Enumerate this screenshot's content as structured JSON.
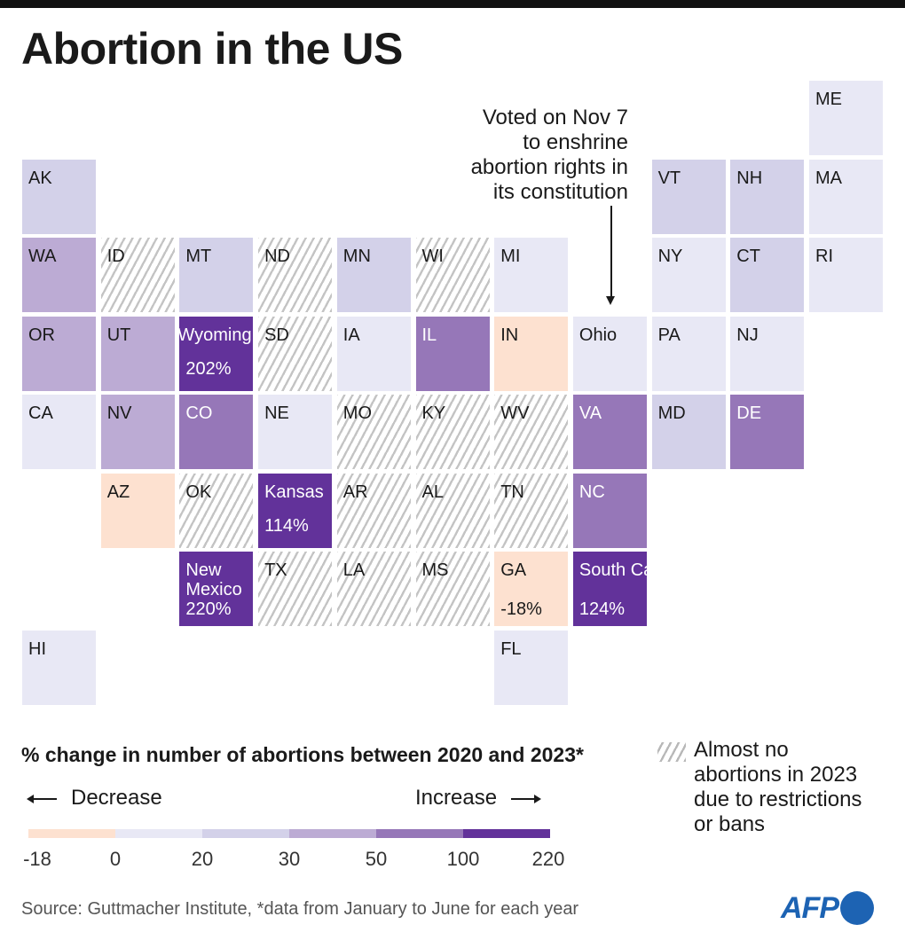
{
  "title": "Abortion in the US",
  "colors": {
    "neg": "#fde1d0",
    "c0_20": "#e8e8f5",
    "c20_30": "#d3d1e9",
    "c30_50": "#bcabd4",
    "c50_100": "#9677b8",
    "c100_plus": "#62329a",
    "hatch": "#c4c4c4",
    "logo": "#1d63b3"
  },
  "annotation": "Voted on Nov 7\nto enshrine\nabortion rights in\nits constitution",
  "states": [
    {
      "code": "ME",
      "label": "ME",
      "row": 0,
      "col": 10,
      "class": "c0_20"
    },
    {
      "code": "AK",
      "label": "AK",
      "row": 1,
      "col": 0,
      "class": "c20_30"
    },
    {
      "code": "VT",
      "label": "VT",
      "row": 1,
      "col": 8,
      "class": "c20_30"
    },
    {
      "code": "NH",
      "label": "NH",
      "row": 1,
      "col": 9,
      "class": "c20_30"
    },
    {
      "code": "MA",
      "label": "MA",
      "row": 1,
      "col": 10,
      "class": "c0_20"
    },
    {
      "code": "WA",
      "label": "WA",
      "row": 2,
      "col": 0,
      "class": "c30_50"
    },
    {
      "code": "ID",
      "label": "ID",
      "row": 2,
      "col": 1,
      "class": "hatch"
    },
    {
      "code": "MT",
      "label": "MT",
      "row": 2,
      "col": 2,
      "class": "c20_30"
    },
    {
      "code": "ND",
      "label": "ND",
      "row": 2,
      "col": 3,
      "class": "hatch"
    },
    {
      "code": "MN",
      "label": "MN",
      "row": 2,
      "col": 4,
      "class": "c20_30"
    },
    {
      "code": "WI",
      "label": "WI",
      "row": 2,
      "col": 5,
      "class": "hatch"
    },
    {
      "code": "MI",
      "label": "MI",
      "row": 2,
      "col": 6,
      "class": "c0_20"
    },
    {
      "code": "NY",
      "label": "NY",
      "row": 2,
      "col": 8,
      "class": "c0_20"
    },
    {
      "code": "CT",
      "label": "CT",
      "row": 2,
      "col": 9,
      "class": "c20_30"
    },
    {
      "code": "RI",
      "label": "RI",
      "row": 2,
      "col": 10,
      "class": "c0_20"
    },
    {
      "code": "OR",
      "label": "OR",
      "row": 3,
      "col": 0,
      "class": "c30_50"
    },
    {
      "code": "UT",
      "label": "UT",
      "row": 3,
      "col": 1,
      "class": "c30_50"
    },
    {
      "code": "WY",
      "label": "Wyoming",
      "value": "202%",
      "row": 3,
      "col": 2,
      "class": "c100_plus",
      "overflow": true
    },
    {
      "code": "SD",
      "label": "SD",
      "row": 3,
      "col": 3,
      "class": "hatch"
    },
    {
      "code": "IA",
      "label": "IA",
      "row": 3,
      "col": 4,
      "class": "c0_20"
    },
    {
      "code": "IL",
      "label": "IL",
      "row": 3,
      "col": 5,
      "class": "c50_100"
    },
    {
      "code": "IN",
      "label": "IN",
      "row": 3,
      "col": 6,
      "class": "neg"
    },
    {
      "code": "OH",
      "label": "Ohio",
      "row": 3,
      "col": 7,
      "class": "c0_20"
    },
    {
      "code": "PA",
      "label": "PA",
      "row": 3,
      "col": 8,
      "class": "c0_20"
    },
    {
      "code": "NJ",
      "label": "NJ",
      "row": 3,
      "col": 9,
      "class": "c0_20"
    },
    {
      "code": "CA",
      "label": "CA",
      "row": 4,
      "col": 0,
      "class": "c0_20"
    },
    {
      "code": "NV",
      "label": "NV",
      "row": 4,
      "col": 1,
      "class": "c30_50"
    },
    {
      "code": "CO",
      "label": "CO",
      "row": 4,
      "col": 2,
      "class": "c50_100"
    },
    {
      "code": "NE",
      "label": "NE",
      "row": 4,
      "col": 3,
      "class": "c0_20"
    },
    {
      "code": "MO",
      "label": "MO",
      "row": 4,
      "col": 4,
      "class": "hatch"
    },
    {
      "code": "KY",
      "label": "KY",
      "row": 4,
      "col": 5,
      "class": "hatch"
    },
    {
      "code": "WV",
      "label": "WV",
      "row": 4,
      "col": 6,
      "class": "hatch"
    },
    {
      "code": "VA",
      "label": "VA",
      "row": 4,
      "col": 7,
      "class": "c50_100"
    },
    {
      "code": "MD",
      "label": "MD",
      "row": 4,
      "col": 8,
      "class": "c20_30"
    },
    {
      "code": "DE",
      "label": "DE",
      "row": 4,
      "col": 9,
      "class": "c50_100"
    },
    {
      "code": "AZ",
      "label": "AZ",
      "row": 5,
      "col": 1,
      "class": "neg"
    },
    {
      "code": "OK",
      "label": "OK",
      "row": 5,
      "col": 2,
      "class": "hatch"
    },
    {
      "code": "KS",
      "label": "Kansas",
      "value": "114%",
      "row": 5,
      "col": 3,
      "class": "c100_plus"
    },
    {
      "code": "AR",
      "label": "AR",
      "row": 5,
      "col": 4,
      "class": "hatch"
    },
    {
      "code": "AL",
      "label": "AL",
      "row": 5,
      "col": 5,
      "class": "hatch"
    },
    {
      "code": "TN",
      "label": "TN",
      "row": 5,
      "col": 6,
      "class": "hatch"
    },
    {
      "code": "NC",
      "label": "NC",
      "row": 5,
      "col": 7,
      "class": "c50_100"
    },
    {
      "code": "NM",
      "label": "New\nMexico",
      "value": "220%",
      "row": 6,
      "col": 2,
      "class": "c100_plus",
      "two": true
    },
    {
      "code": "TX",
      "label": "TX",
      "row": 6,
      "col": 3,
      "class": "hatch"
    },
    {
      "code": "LA",
      "label": "LA",
      "row": 6,
      "col": 4,
      "class": "hatch"
    },
    {
      "code": "MS",
      "label": "MS",
      "row": 6,
      "col": 5,
      "class": "hatch"
    },
    {
      "code": "GA",
      "label": "GA",
      "value": "-18%",
      "row": 6,
      "col": 6,
      "class": "neg",
      "two": true
    },
    {
      "code": "SC",
      "label": "South\nCarolina",
      "value": "124%",
      "row": 6,
      "col": 7,
      "class": "c100_plus",
      "two": true,
      "overflow": true
    },
    {
      "code": "HI",
      "label": "HI",
      "row": 7,
      "col": 0,
      "class": "c0_20"
    },
    {
      "code": "FL",
      "label": "FL",
      "row": 7,
      "col": 6,
      "class": "c0_20"
    }
  ],
  "legend": {
    "title": "% change in number of abortions between 2020 and 2023*",
    "decrease": "Decrease",
    "increase": "Increase",
    "ticks": [
      "-18",
      "0",
      "20",
      "30",
      "50",
      "100",
      "220"
    ],
    "bins": [
      "neg",
      "c0_20",
      "c20_30",
      "c30_50",
      "c50_100",
      "c100_plus"
    ],
    "hatch_label": "Almost no\nabortions in 2023\ndue to restrictions\nor bans"
  },
  "source": "Source: Guttmacher Institute, *data from January to June for each year",
  "logo": "AFP"
}
